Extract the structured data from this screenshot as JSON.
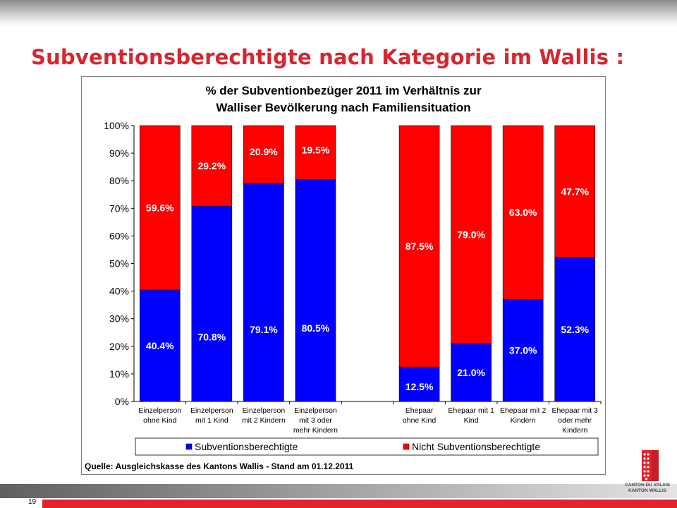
{
  "slide": {
    "title": "Subventionsberechtigte nach Kategorie im Wallis :",
    "page_number": "19",
    "logo_lines": [
      "CANTON DU VALAIS",
      "KANTON WALLIS"
    ]
  },
  "colors": {
    "series1": "#0000ff",
    "series2": "#ff0000",
    "title": "#d7262f"
  },
  "chart_data": {
    "type": "bar",
    "stacked": true,
    "title_lines": [
      "% der Subventionbezüger 2011 im Verhältnis zur",
      "Walliser Bevölkerung nach Familiensituation"
    ],
    "categories": [
      [
        "Einzelperson",
        "ohne Kind"
      ],
      [
        "Einzelperson",
        "mit 1 Kind"
      ],
      [
        "Einzelperson",
        "mit 2 Kindern"
      ],
      [
        "Einzelperson",
        "mit 3 oder",
        "mehr Kindern"
      ],
      [],
      [
        "Ehepaar",
        "ohne Kind"
      ],
      [
        "Ehepaar mit 1",
        "Kind"
      ],
      [
        "Ehepaar mit 2",
        "Kindern"
      ],
      [
        "Ehepaar mit 3",
        "oder mehr",
        "Kindern"
      ]
    ],
    "series": [
      {
        "name": "Subventionsberechtigte",
        "values": [
          40.4,
          70.8,
          79.1,
          80.5,
          null,
          12.5,
          21.0,
          37.0,
          52.3
        ],
        "labels": [
          "40.4%",
          "70.8%",
          "79.1%",
          "80.5%",
          "",
          "12.5%",
          "21.0%",
          "37.0%",
          "52.3%"
        ]
      },
      {
        "name": "Nicht Subventionsberechtigte",
        "values": [
          59.6,
          29.2,
          20.9,
          19.5,
          null,
          87.5,
          79.0,
          63.0,
          47.7
        ],
        "labels": [
          "59.6%",
          "29.2%",
          "20.9%",
          "19.5%",
          "",
          "87.5%",
          "79.0%",
          "63.0%",
          "47.7%"
        ]
      }
    ],
    "ylim": [
      0,
      100
    ],
    "yticks": [
      "0%",
      "10%",
      "20%",
      "30%",
      "40%",
      "50%",
      "60%",
      "70%",
      "80%",
      "90%",
      "100%"
    ],
    "legend_position": "bottom",
    "source": "Quelle: Ausgleichskasse des Kantons Wallis - Stand am 01.12.2011"
  }
}
